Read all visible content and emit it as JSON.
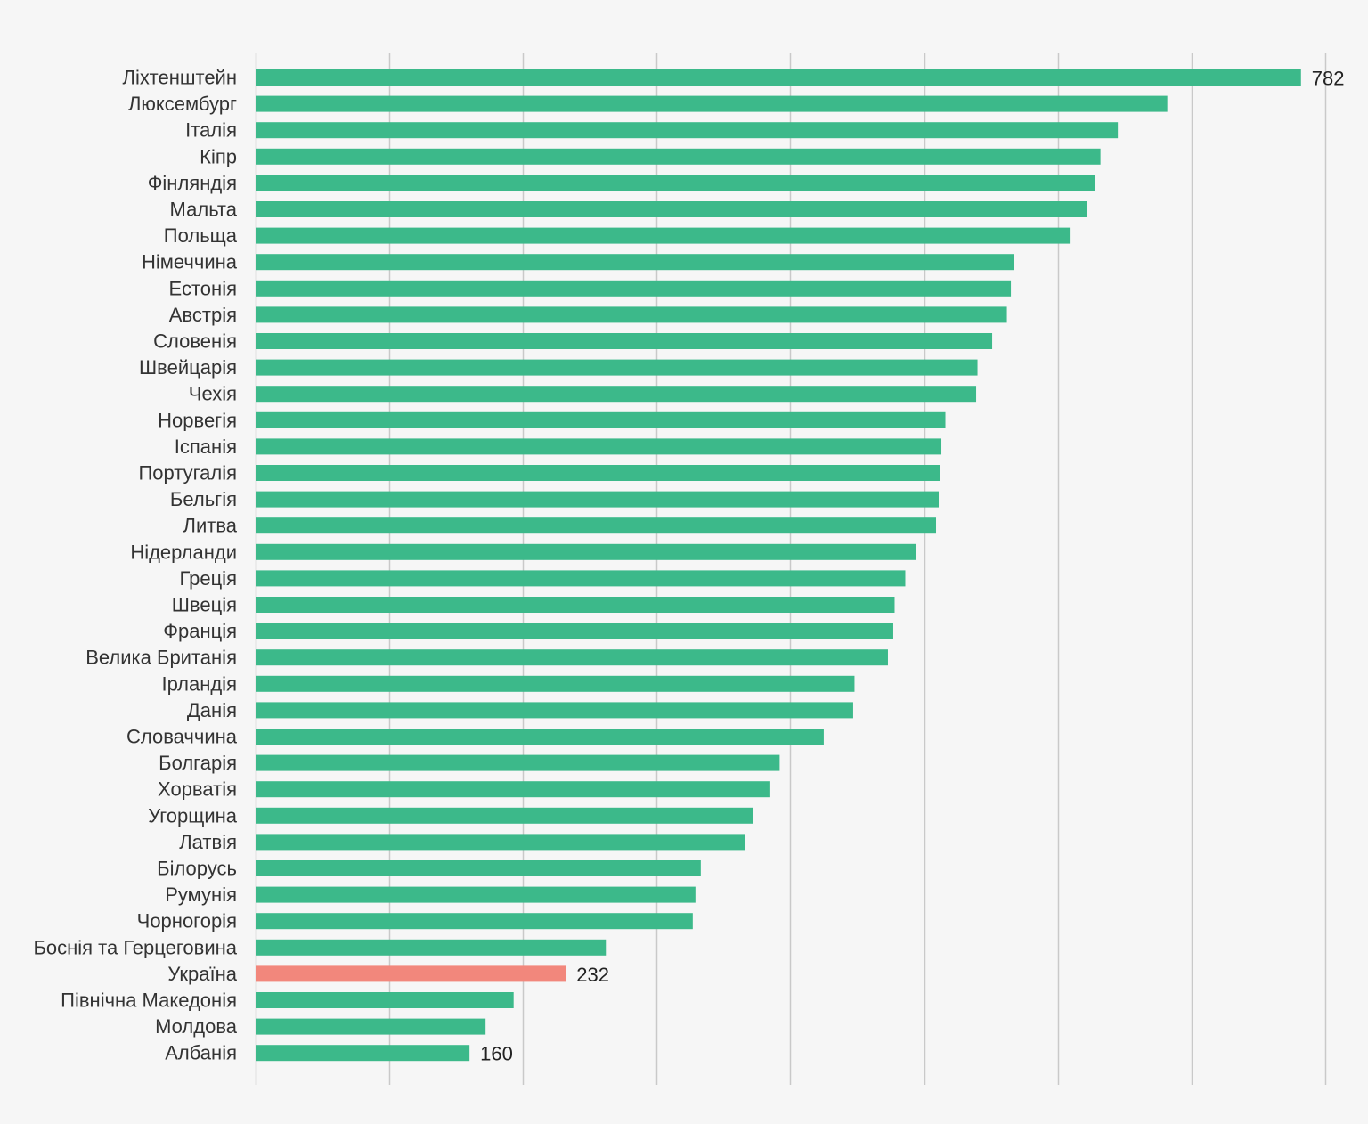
{
  "chart_data": {
    "type": "bar",
    "orientation": "horizontal",
    "title": "",
    "xlabel": "",
    "ylabel": "",
    "xlim": [
      0,
      800
    ],
    "grid": true,
    "legend": "none",
    "colors": {
      "default": "#3cb98a",
      "highlight": "#f2877c",
      "background": "#f6f6f6",
      "grid": "#c9c9c9"
    },
    "categories": [
      "Ліхтенштейн",
      "Люксембург",
      "Італія",
      "Кіпр",
      "Фінляндія",
      "Мальта",
      "Польща",
      "Німеччина",
      "Естонія",
      "Австрія",
      "Словенія",
      "Швейцарія",
      "Чехія",
      "Норвегія",
      "Іспанія",
      "Португалія",
      "Бельгія",
      "Литва",
      "Нідерланди",
      "Греція",
      "Швеція",
      "Франція",
      "Велика Британія",
      "Ірландія",
      "Данія",
      "Словаччина",
      "Болгарія",
      "Хорватія",
      "Угорщина",
      "Латвія",
      "Білорусь",
      "Румунія",
      "Чорногорія",
      "Боснія та Герцеговина",
      "Україна",
      "Північна Македонія",
      "Молдова",
      "Албанія"
    ],
    "values": [
      782,
      682,
      645,
      632,
      628,
      622,
      609,
      567,
      565,
      562,
      551,
      540,
      539,
      516,
      513,
      512,
      511,
      509,
      494,
      486,
      478,
      477,
      473,
      448,
      447,
      425,
      392,
      385,
      372,
      366,
      333,
      329,
      327,
      262,
      232,
      193,
      172,
      160
    ],
    "highlight": [
      "Україна"
    ],
    "data_labels": {
      "Ліхтенштейн": "782",
      "Україна": "232",
      "Албанія": "160"
    }
  }
}
